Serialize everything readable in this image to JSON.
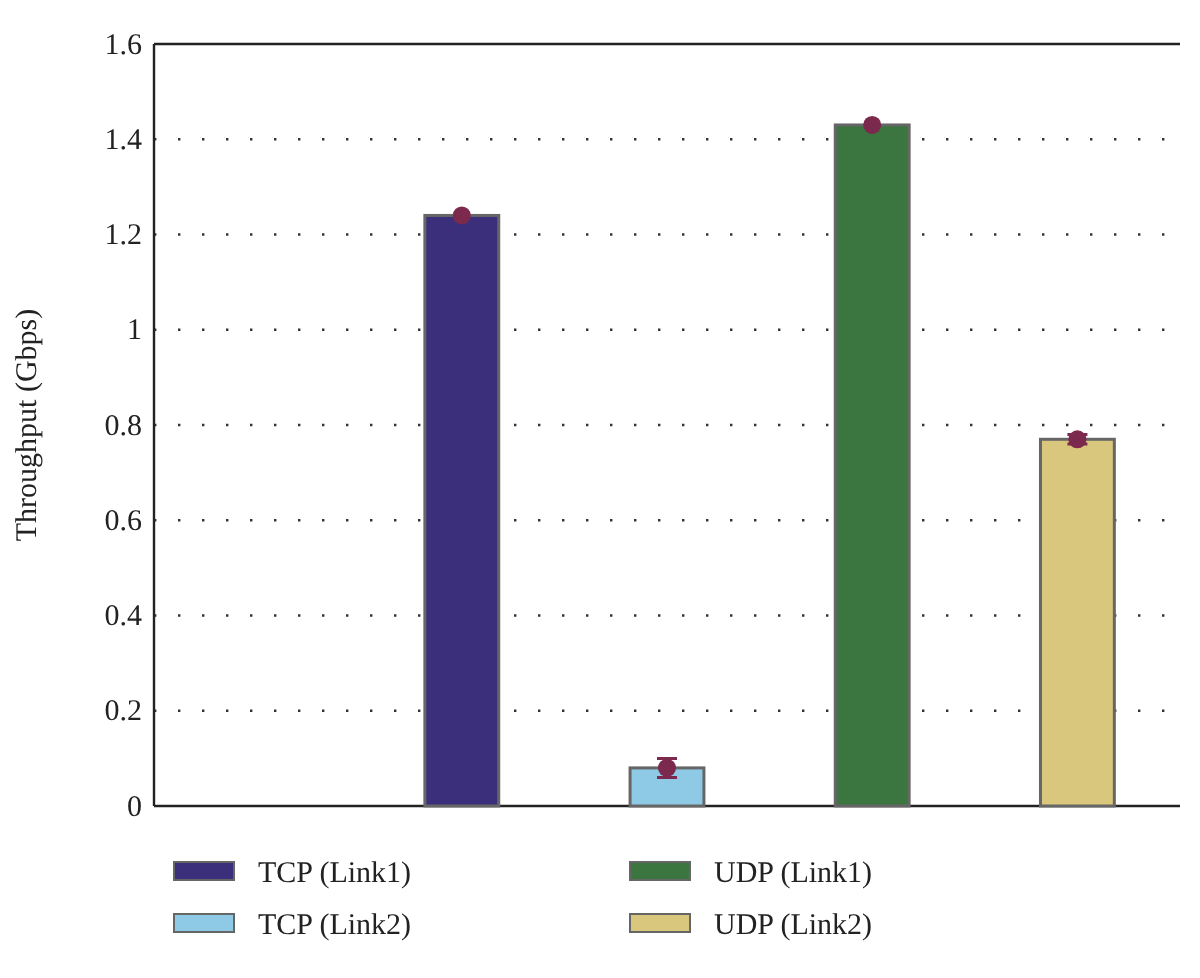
{
  "chart_data": {
    "type": "bar",
    "ylabel": "Throughput (Gbps)",
    "categories": [
      null,
      null,
      null,
      null,
      null
    ],
    "ylim": [
      0,
      1.6
    ],
    "yticks": [
      0,
      0.2,
      0.4,
      0.6,
      0.8,
      1,
      1.2,
      1.4,
      1.6
    ],
    "grid": "y",
    "legend": "bottom",
    "series": [
      {
        "name": "TCP (Link1)",
        "color": "#3b2f7c",
        "values": [
          null,
          1.24,
          null,
          null,
          null
        ]
      },
      {
        "name": "TCP (Link2)",
        "color": "#8ecae6",
        "values": [
          null,
          null,
          0.08,
          null,
          null
        ]
      },
      {
        "name": "UDP (Link1)",
        "color": "#3b7540",
        "values": [
          null,
          null,
          null,
          1.43,
          null
        ]
      },
      {
        "name": "UDP (Link2)",
        "color": "#d9c77d",
        "values": [
          null,
          null,
          null,
          null,
          0.77
        ]
      },
      {
        "type": "scatter",
        "color": "#7b2a4d",
        "marker": "circle",
        "values": [
          null,
          1.24,
          0.08,
          1.43,
          0.77
        ],
        "errors": [
          null,
          null,
          0.02,
          null,
          0.01
        ]
      }
    ]
  }
}
